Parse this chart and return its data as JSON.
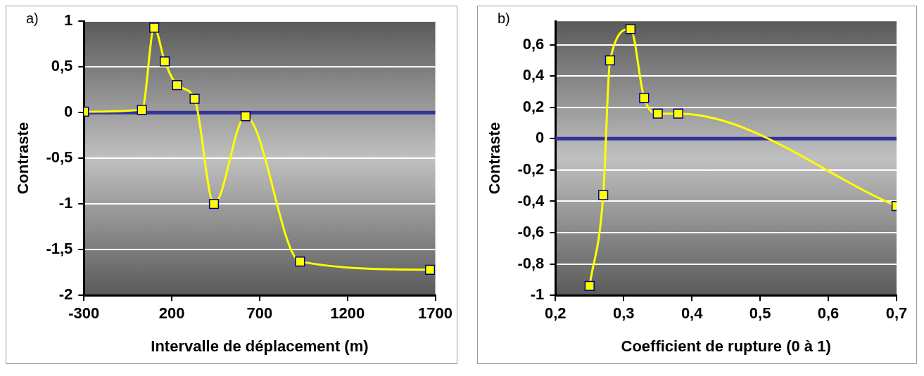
{
  "chart_data": [
    {
      "type": "line",
      "annotations": [
        "a)"
      ],
      "xlabel": "Intervalle de déplacement (m)",
      "ylabel": "Contraste",
      "x": [
        -300,
        30,
        100,
        160,
        230,
        330,
        440,
        620,
        930,
        1670
      ],
      "series": [
        {
          "color": "#ffff00",
          "values": [
            0.01,
            0.03,
            0.93,
            0.56,
            0.3,
            0.15,
            -1.0,
            -0.04,
            -1.63,
            -1.72
          ]
        }
      ],
      "xlim": [
        -300,
        1700
      ],
      "xticks": [
        -300,
        200,
        700,
        1200,
        1700
      ],
      "ylim": [
        -2,
        1
      ],
      "yticks": [
        -2,
        {
          "value": -1.5,
          "label": "-1,5"
        },
        -1,
        {
          "value": -0.5,
          "label": "-0,5"
        },
        0,
        {
          "value": 0.5,
          "label": "0,5"
        },
        1
      ],
      "ref_lines": [
        {
          "axis": "y",
          "value": 0,
          "color": "#333399"
        }
      ],
      "grid": "y",
      "legend": false,
      "marker": "square",
      "line_style": "solid"
    },
    {
      "type": "line",
      "annotations": [
        "b)"
      ],
      "xlabel": "Coefficient de rupture (0 à 1)",
      "ylabel": "Contraste",
      "x": [
        0.25,
        0.27,
        0.28,
        0.31,
        0.33,
        0.35,
        0.38,
        0.7
      ],
      "series": [
        {
          "color": "#ffff00",
          "values": [
            -0.94,
            -0.36,
            0.5,
            0.7,
            0.26,
            0.16,
            0.16,
            -0.43
          ]
        }
      ],
      "xlim": [
        0.2,
        0.7
      ],
      "xticks": [
        {
          "value": 0.2,
          "label": "0,2"
        },
        {
          "value": 0.3,
          "label": "0,3"
        },
        {
          "value": 0.4,
          "label": "0,4"
        },
        {
          "value": 0.5,
          "label": "0,5"
        },
        {
          "value": 0.6,
          "label": "0,6"
        },
        {
          "value": 0.7,
          "label": "0,7"
        }
      ],
      "ylim": [
        -1,
        0.75
      ],
      "yticks": [
        -1,
        {
          "value": -0.8,
          "label": "-0,8"
        },
        {
          "value": -0.6,
          "label": "-0,6"
        },
        {
          "value": -0.4,
          "label": "-0,4"
        },
        {
          "value": -0.2,
          "label": "-0,2"
        },
        0,
        {
          "value": 0.2,
          "label": "0,2"
        },
        {
          "value": 0.4,
          "label": "0,4"
        },
        {
          "value": 0.6,
          "label": "0,6"
        }
      ],
      "ref_lines": [
        {
          "axis": "y",
          "value": 0,
          "color": "#333399"
        }
      ],
      "grid": "y",
      "legend": false,
      "marker": "square",
      "line_style": "solid"
    }
  ]
}
